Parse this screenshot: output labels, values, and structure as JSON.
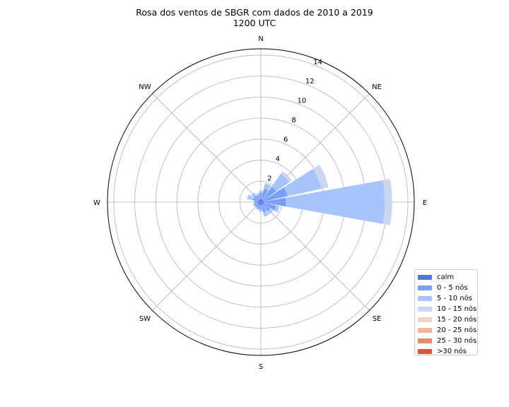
{
  "chart_data": {
    "type": "windrose",
    "title": "Rosa dos ventos de SBGR com dados de 2010 a 2019",
    "subtitle": "1200 UTC",
    "directions": [
      "N",
      "NE",
      "E",
      "SE",
      "S",
      "SW",
      "W",
      "NW"
    ],
    "radial_ticks": [
      2,
      4,
      6,
      8,
      10,
      12,
      14
    ],
    "r_max": 14.6,
    "grid": true,
    "legend_position": "lower-right",
    "bins": [
      "calm",
      "0 - 5 nós",
      "5 - 10 nós",
      "10 - 15 nós",
      "15 - 20 nós",
      "20 - 25 nós",
      "25 - 30 nós",
      ">30 nós"
    ],
    "colors": [
      "#5875dd",
      "#7b9ff9",
      "#a7c4fd",
      "#c9d7f0",
      "#ecd3c5",
      "#f4b497",
      "#ec8a6d",
      "#d65444"
    ],
    "sectors": [
      {
        "dir": 0,
        "values": [
          0.3,
          0.6,
          0.15,
          0.05
        ]
      },
      {
        "dir": 22.5,
        "values": [
          0.3,
          1.0,
          0.5,
          0.1
        ]
      },
      {
        "dir": 45,
        "values": [
          0.3,
          1.5,
          1.5,
          0.3
        ]
      },
      {
        "dir": 67.5,
        "values": [
          0.3,
          2.3,
          3.3,
          0.7
        ]
      },
      {
        "dir": 90,
        "values": [
          0.3,
          2.1,
          9.4,
          0.7
        ]
      },
      {
        "dir": 112.5,
        "values": [
          0.3,
          1.2,
          0.3,
          0.05
        ]
      },
      {
        "dir": 135,
        "values": [
          0.3,
          0.8,
          0.3,
          0.05
        ]
      },
      {
        "dir": 157.5,
        "values": [
          0.3,
          0.7,
          0.4,
          0.05
        ]
      },
      {
        "dir": 180,
        "values": [
          0.3,
          0.4,
          0.2,
          0.05
        ]
      },
      {
        "dir": 202.5,
        "values": [
          0.3,
          0.4,
          0.1,
          0.0
        ]
      },
      {
        "dir": 225,
        "values": [
          0.3,
          0.35,
          0.05,
          0.0
        ]
      },
      {
        "dir": 247.5,
        "values": [
          0.3,
          0.4,
          0.05,
          0.0
        ]
      },
      {
        "dir": 270,
        "values": [
          0.3,
          0.3,
          0.05,
          0.0
        ]
      },
      {
        "dir": 292.5,
        "values": [
          0.3,
          0.5,
          0.5,
          0.1
        ]
      },
      {
        "dir": 315,
        "values": [
          0.3,
          0.5,
          0.3,
          0.05
        ]
      },
      {
        "dir": 337.5,
        "values": [
          0.3,
          0.4,
          0.15,
          0.05
        ]
      }
    ]
  }
}
